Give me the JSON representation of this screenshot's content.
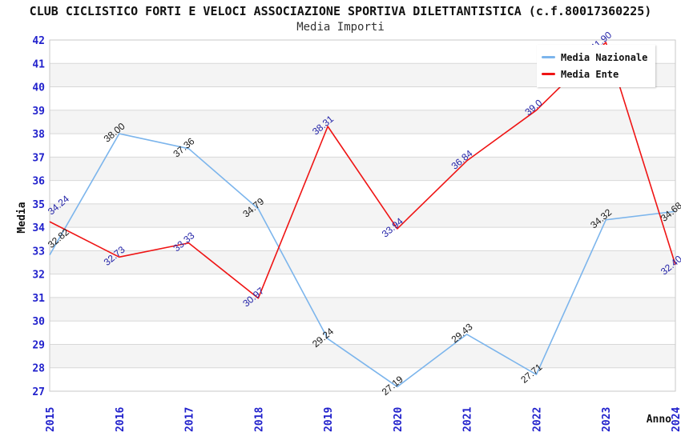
{
  "header": {
    "title": "CLUB CICLISTICO FORTI E VELOCI ASSOCIAZIONE SPORTIVA DILETTANTISTICA (c.f.80017360225)",
    "subtitle": "Media Importi"
  },
  "legend": {
    "items": [
      {
        "label": "Media Nazionale",
        "color": "#7cb5ec"
      },
      {
        "label": "Media Ente",
        "color": "#ef1414"
      }
    ]
  },
  "chart_data": {
    "type": "line",
    "title": "CLUB CICLISTICO FORTI E VELOCI ASSOCIAZIONE SPORTIVA DILETTANTISTICA (c.f.80017360225)",
    "subtitle": "Media Importi",
    "categories": [
      "2015",
      "2016",
      "2017",
      "2018",
      "2019",
      "2020",
      "2021",
      "2022",
      "2023",
      "2024"
    ],
    "series": [
      {
        "name": "Media Nazionale",
        "color": "#7cb5ec",
        "label_color": "#1a1a1a",
        "values": [
          32.82,
          38.0,
          37.36,
          34.79,
          29.24,
          27.19,
          29.43,
          27.71,
          34.32,
          34.68
        ],
        "labels": [
          "32.82",
          "38.00",
          "37.36",
          "34.79",
          "29.24",
          "27.19",
          "29.43",
          "27.71",
          "34.32",
          "34.68"
        ]
      },
      {
        "name": "Media Ente",
        "color": "#ef1414",
        "label_color": "#2424a8",
        "values": [
          34.24,
          32.73,
          33.33,
          30.97,
          38.31,
          33.94,
          36.84,
          39.0,
          41.9,
          32.4
        ],
        "labels": [
          "34.24",
          "32.73",
          "33.33",
          "30.97",
          "38.31",
          "33.94",
          "36.84",
          "39.0",
          "41.90",
          "32.40"
        ]
      }
    ],
    "xlabel": "Anno",
    "ylabel": "Media",
    "ylim": [
      27,
      42
    ],
    "y_ticks": [
      27,
      28,
      29,
      30,
      31,
      32,
      33,
      34,
      35,
      36,
      37,
      38,
      39,
      40,
      41,
      42
    ],
    "grid": "horizontal",
    "bands": "alternating-gray",
    "legend_position": "top-right",
    "axis_label_color": "#2121cc",
    "band_color": "#f4f4f4",
    "gridline_color": "#d8d8d8",
    "frame_color": "#c9c9c9"
  }
}
